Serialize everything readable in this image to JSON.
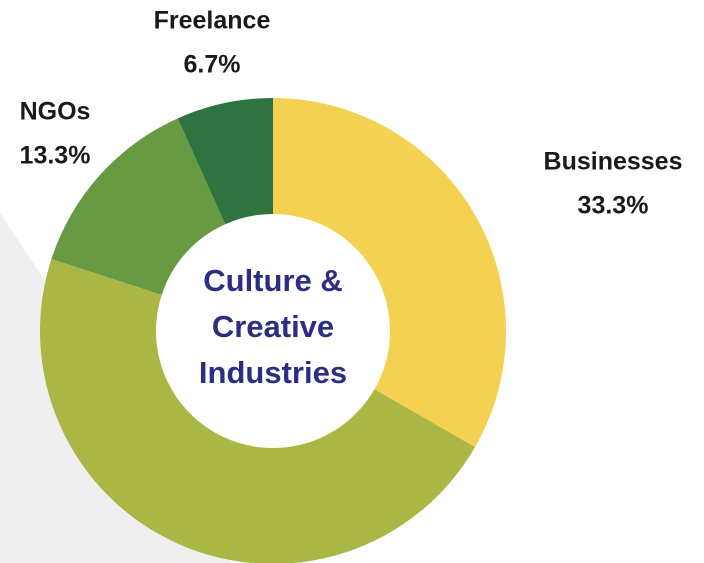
{
  "chart_data": {
    "type": "donut",
    "categories": [
      "Businesses",
      null,
      "NGOs",
      "Freelance"
    ],
    "values": [
      33.3,
      46.7,
      13.3,
      6.7
    ],
    "value_labels": [
      "33.3%",
      null,
      "13.3%",
      "6.7%"
    ],
    "colors": [
      "#f4d150",
      "#abb745",
      "#679a42",
      "#2e7340"
    ],
    "center_label": [
      "Culture &",
      "Creative",
      "Industries"
    ]
  }
}
